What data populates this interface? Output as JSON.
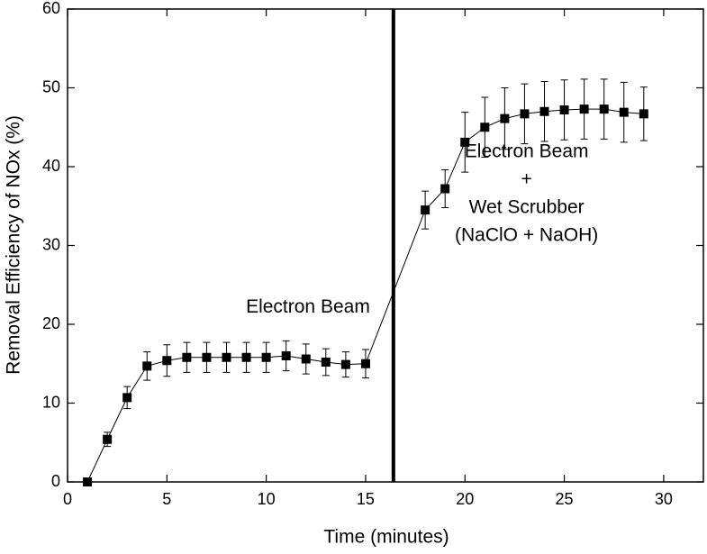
{
  "chart_data": {
    "type": "line",
    "x_label": "Time (minutes)",
    "y_label": "Removal Efficiency of NOx (%)",
    "series": [
      {
        "color": "#000000",
        "x": [
          1,
          2,
          3,
          4,
          5,
          6,
          7,
          8,
          9,
          10,
          11,
          12,
          13,
          14,
          15,
          18,
          19,
          20,
          21,
          22,
          23,
          24,
          25,
          26,
          27,
          28,
          29
        ],
        "values": [
          0,
          5.4,
          10.7,
          14.7,
          15.4,
          15.8,
          15.8,
          15.8,
          15.8,
          15.8,
          16.0,
          15.6,
          15.2,
          14.9,
          15.0,
          34.5,
          37.2,
          43.1,
          45.0,
          46.1,
          46.7,
          47.0,
          47.2,
          47.3,
          47.3,
          46.9,
          46.7
        ],
        "errors": [
          0,
          0.9,
          1.4,
          1.8,
          2.0,
          1.9,
          1.9,
          1.9,
          1.9,
          1.9,
          1.9,
          1.9,
          1.7,
          1.6,
          1.8,
          2.4,
          2.4,
          3.8,
          3.8,
          3.9,
          3.8,
          3.8,
          3.8,
          3.8,
          3.8,
          3.8,
          3.4
        ]
      }
    ],
    "xlim": [
      0,
      32
    ],
    "xticks": [
      0,
      5,
      10,
      15,
      20,
      25,
      30
    ],
    "ylim": [
      0,
      60
    ],
    "yticks": [
      0,
      10,
      20,
      30,
      40,
      50,
      60
    ],
    "divider_x": 16.4,
    "annotations": [
      {
        "x": 12.1,
        "y": 22.1,
        "lines": [
          "Electron Beam"
        ]
      },
      {
        "x": 23.1,
        "y": 36.5,
        "lines": [
          "Electron Beam",
          "+",
          "Wet Scrubber",
          "(NaClO + NaOH)"
        ]
      }
    ]
  }
}
